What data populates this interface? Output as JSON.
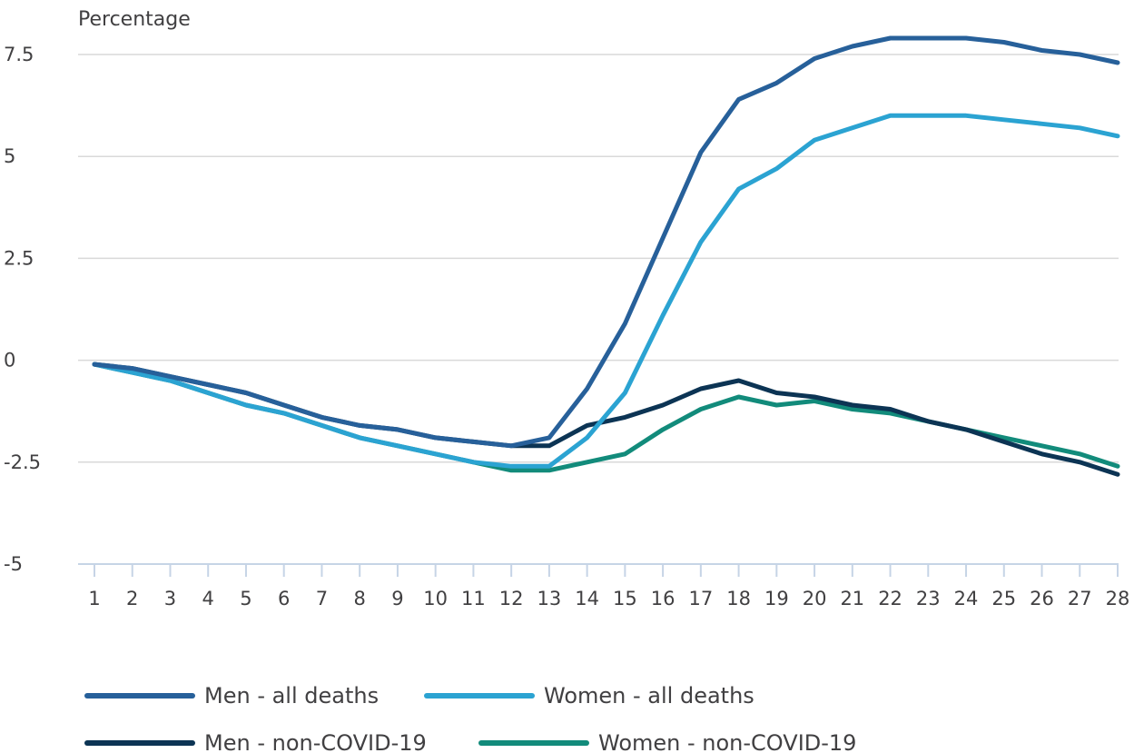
{
  "chart_data": {
    "type": "line",
    "title": "",
    "ylabel": "Percentage",
    "xlabel": "",
    "ylim": [
      -5,
      8.5
    ],
    "yticks": [
      7.5,
      5,
      2.5,
      0,
      -2.5,
      -5
    ],
    "ytick_labels": [
      "7.5",
      "5",
      "2.5",
      "0",
      "-2.5",
      "-5"
    ],
    "x": [
      "1",
      "2",
      "3",
      "4",
      "5",
      "6",
      "7",
      "8",
      "9",
      "10",
      "11",
      "12",
      "13",
      "14",
      "15",
      "16",
      "17",
      "18",
      "19",
      "20",
      "21",
      "22",
      "23",
      "24",
      "25",
      "26",
      "27",
      "28"
    ],
    "grid": "horizontal",
    "legend_position": "bottom",
    "series": [
      {
        "name": "Men - all deaths",
        "color": "#27609a",
        "values": [
          -0.1,
          -0.2,
          -0.4,
          -0.6,
          -0.8,
          -1.1,
          -1.4,
          -1.6,
          -1.7,
          -1.9,
          -2.0,
          -2.1,
          -1.9,
          -0.7,
          0.9,
          3.0,
          5.1,
          6.4,
          6.8,
          7.4,
          7.7,
          7.9,
          7.9,
          7.9,
          7.8,
          7.6,
          7.5,
          7.3
        ]
      },
      {
        "name": "Women - all deaths",
        "color": "#2ba3d2",
        "values": [
          -0.1,
          -0.3,
          -0.5,
          -0.8,
          -1.1,
          -1.3,
          -1.6,
          -1.9,
          -2.1,
          -2.3,
          -2.5,
          -2.6,
          -2.6,
          -1.9,
          -0.8,
          1.1,
          2.9,
          4.2,
          4.7,
          5.4,
          5.7,
          6.0,
          6.0,
          6.0,
          5.9,
          5.8,
          5.7,
          5.5
        ]
      },
      {
        "name": "Men - non-COVID-19",
        "color": "#0c3454",
        "values": [
          -0.1,
          -0.2,
          -0.4,
          -0.6,
          -0.8,
          -1.1,
          -1.4,
          -1.6,
          -1.7,
          -1.9,
          -2.0,
          -2.1,
          -2.1,
          -1.6,
          -1.4,
          -1.1,
          -0.7,
          -0.5,
          -0.8,
          -0.9,
          -1.1,
          -1.2,
          -1.5,
          -1.7,
          -2.0,
          -2.3,
          -2.5,
          -2.8
        ]
      },
      {
        "name": "Women - non-COVID-19",
        "color": "#128b7b",
        "values": [
          -0.1,
          -0.3,
          -0.5,
          -0.8,
          -1.1,
          -1.3,
          -1.6,
          -1.9,
          -2.1,
          -2.3,
          -2.5,
          -2.7,
          -2.7,
          -2.5,
          -2.3,
          -1.7,
          -1.2,
          -0.9,
          -1.1,
          -1.0,
          -1.2,
          -1.3,
          -1.5,
          -1.7,
          -1.9,
          -2.1,
          -2.3,
          -2.6
        ]
      }
    ]
  }
}
